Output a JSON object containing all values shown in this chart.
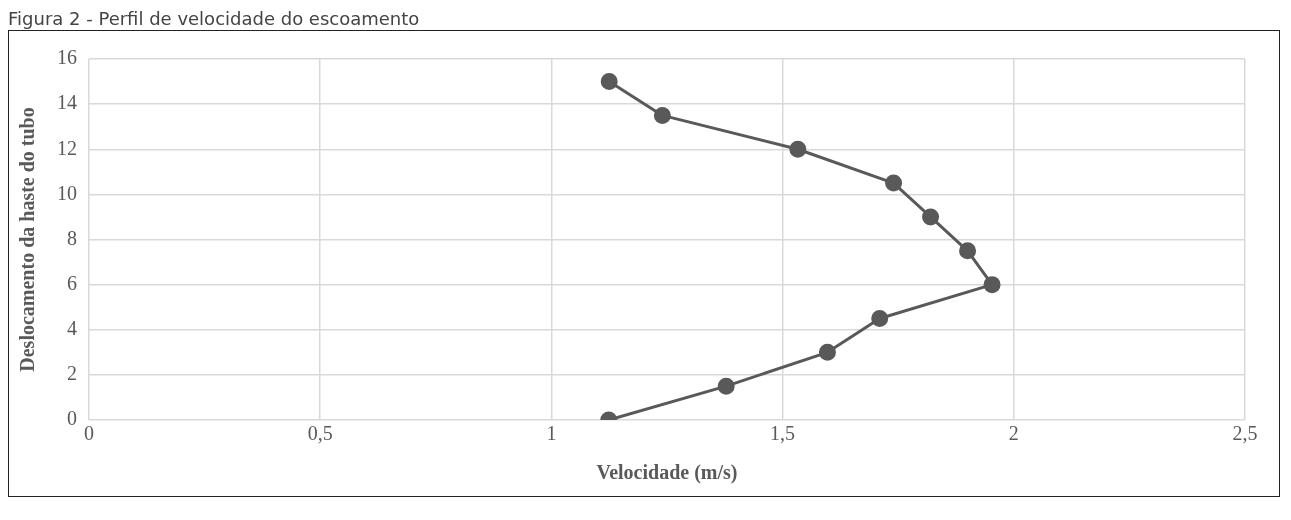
{
  "chart_data": {
    "type": "line",
    "title": "Figura 2 - Perfil de velocidade do escoamento",
    "xlabel": "Velocidade (m/s)",
    "ylabel": "Deslocamento da haste do tubo",
    "x": [
      1.124,
      1.378,
      1.597,
      1.71,
      1.953,
      1.9,
      1.82,
      1.74,
      1.533,
      1.24,
      1.125
    ],
    "values": [
      0,
      1.5,
      3,
      4.5,
      6,
      7.5,
      9,
      10.5,
      12,
      13.5,
      15
    ],
    "color": "#595959",
    "marker": "circle",
    "line_style": "solid",
    "xlim": [
      0,
      2.5
    ],
    "xticks": [
      0,
      {
        "value": 0.5,
        "label": "0,5"
      },
      1,
      {
        "value": 1.5,
        "label": "1,5"
      },
      2,
      {
        "value": 2.5,
        "label": "2,5"
      }
    ],
    "ylim": [
      0,
      16
    ],
    "yticks": [
      0,
      2,
      4,
      6,
      8,
      10,
      12,
      14,
      16
    ],
    "grid": true,
    "legend": false
  }
}
